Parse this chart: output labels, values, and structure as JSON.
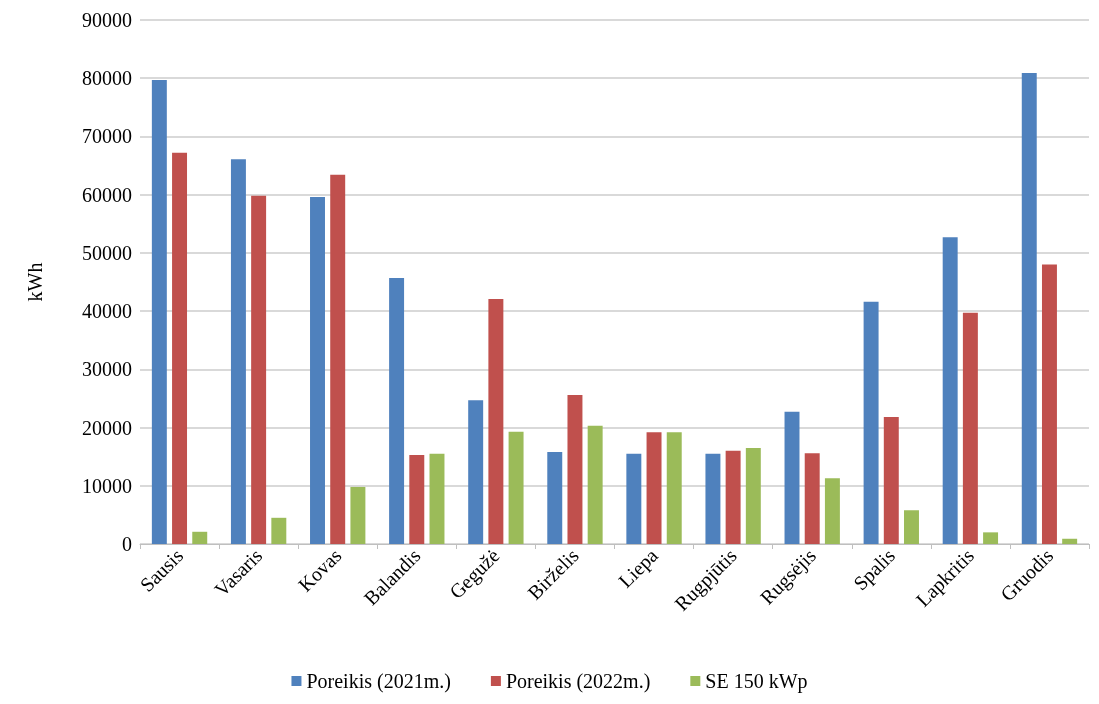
{
  "chart_data": {
    "type": "bar",
    "ylabel": "kWh",
    "categories": [
      "Sausis",
      "Vasaris",
      "Kovas",
      "Balandis",
      "Gegužė",
      "Birželis",
      "Liepa",
      "Rugpjūtis",
      "Rugsėjis",
      "Spalis",
      "Lapkritis",
      "Gruodis"
    ],
    "series": [
      {
        "name": "Poreikis (2021m.)",
        "color": "#4f81bd",
        "values": [
          79700,
          66100,
          59600,
          45700,
          24700,
          15800,
          15500,
          15500,
          22700,
          41600,
          52700,
          80900
        ]
      },
      {
        "name": "Poreikis (2022m.)",
        "color": "#c0504d",
        "values": [
          67200,
          59800,
          63400,
          15300,
          42100,
          25600,
          19200,
          16000,
          15600,
          21800,
          39700,
          48000
        ]
      },
      {
        "name": "SE 150 kWp",
        "color": "#9bbb59",
        "values": [
          2100,
          4500,
          9800,
          15500,
          19300,
          20300,
          19200,
          16500,
          11300,
          5800,
          2000,
          900
        ]
      }
    ],
    "ylim": [
      0,
      90000
    ],
    "yticks": [
      0,
      10000,
      20000,
      30000,
      40000,
      50000,
      60000,
      70000,
      80000,
      90000
    ],
    "grid": "y",
    "legend": "bottom"
  }
}
